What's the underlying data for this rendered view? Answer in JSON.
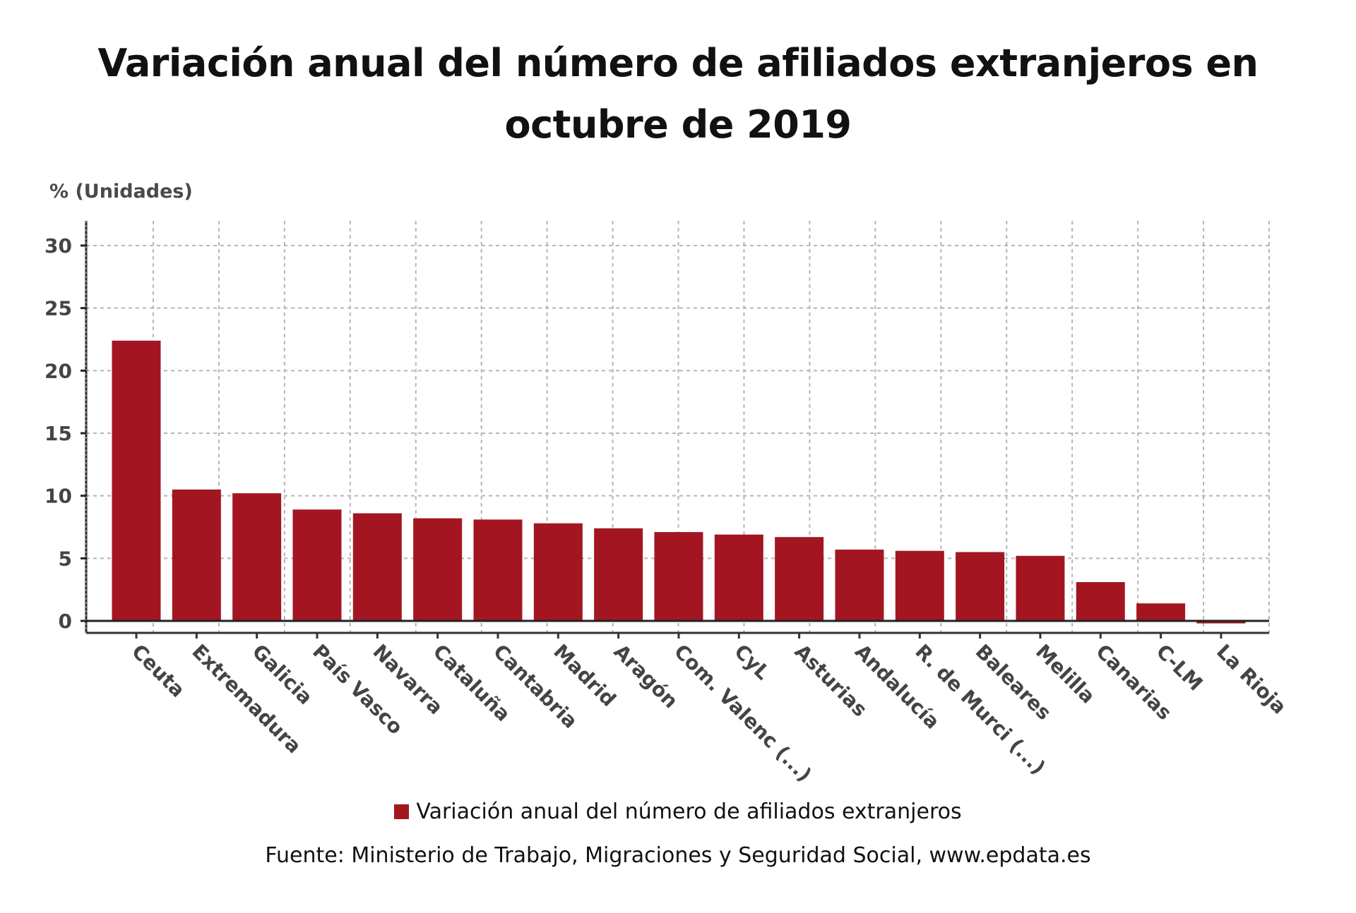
{
  "title_line1": "Variación anual del número de afiliados extranjeros en",
  "title_line2": "octubre de 2019",
  "source": "Fuente: Ministerio de Trabajo, Migraciones y Seguridad Social, www.epdata.es",
  "chart_data": {
    "type": "bar",
    "title": "Variación anual del número de afiliados extranjeros en octubre de 2019",
    "xlabel": "",
    "ylabel": "% (Unidades)",
    "ylim": [
      0,
      30
    ],
    "yticks": [
      0,
      5,
      10,
      15,
      20,
      25,
      30
    ],
    "grid": true,
    "legend_position": "bottom",
    "bar_color": "#a31621",
    "categories": [
      "Ceuta",
      "Extremadura",
      "Galicia",
      "País Vasco",
      "Navarra",
      "Cataluña",
      "Cantabria",
      "Madrid",
      "Aragón",
      "Com. Valenc (...)",
      "CyL",
      "Asturias",
      "Andalucía",
      "R. de Murci (...)",
      "Baleares",
      "Melilla",
      "Canarias",
      "C-LM",
      "La Rioja"
    ],
    "series": [
      {
        "name": "Variación anual del número de afiliados extranjeros",
        "values": [
          22.4,
          10.5,
          10.2,
          8.9,
          8.6,
          8.2,
          8.1,
          7.8,
          7.4,
          7.1,
          6.9,
          6.7,
          5.7,
          5.6,
          5.5,
          5.2,
          3.1,
          1.4,
          -0.2
        ]
      }
    ]
  }
}
